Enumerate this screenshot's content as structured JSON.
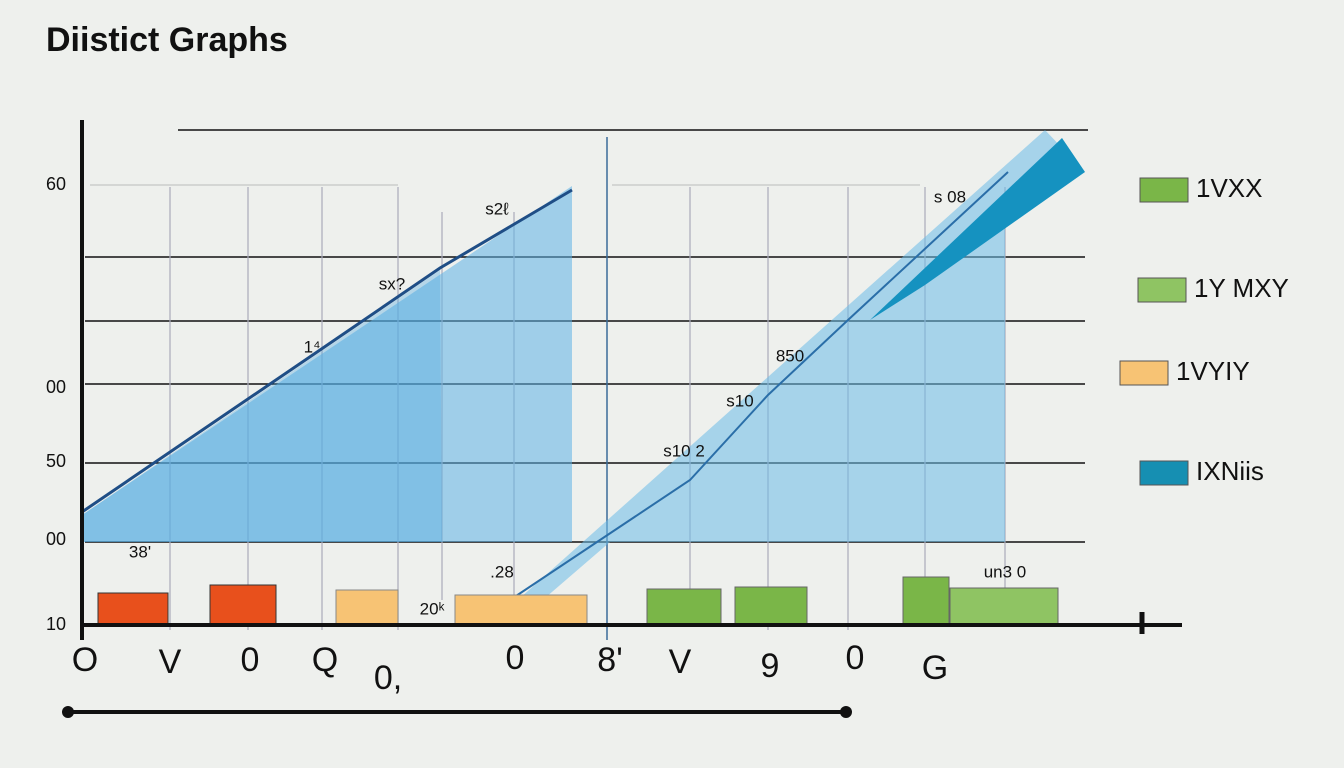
{
  "title": "Diistict Graphs",
  "y_axis_labels": [
    "60",
    "00",
    "50",
    "00",
    "10"
  ],
  "x_axis_labels": [
    "O",
    "V",
    "0",
    "Q",
    "0,",
    "0",
    "8'",
    "V",
    "9",
    "0",
    "G"
  ],
  "annotations": [
    "s2ℓ",
    "sx?",
    "1⁴",
    "38'",
    "s 08",
    "850",
    "s10",
    "s10 2",
    "20ᵏ",
    ".28",
    "un3 0"
  ],
  "legend": [
    {
      "label": "1VXX",
      "color": "#7ab648"
    },
    {
      "label": "1Y MXY",
      "color": "#8fc463"
    },
    {
      "label": "1VYIY",
      "color": "#f7c374"
    },
    {
      "label": "IXNiis",
      "color": "#168fb2"
    }
  ]
}
